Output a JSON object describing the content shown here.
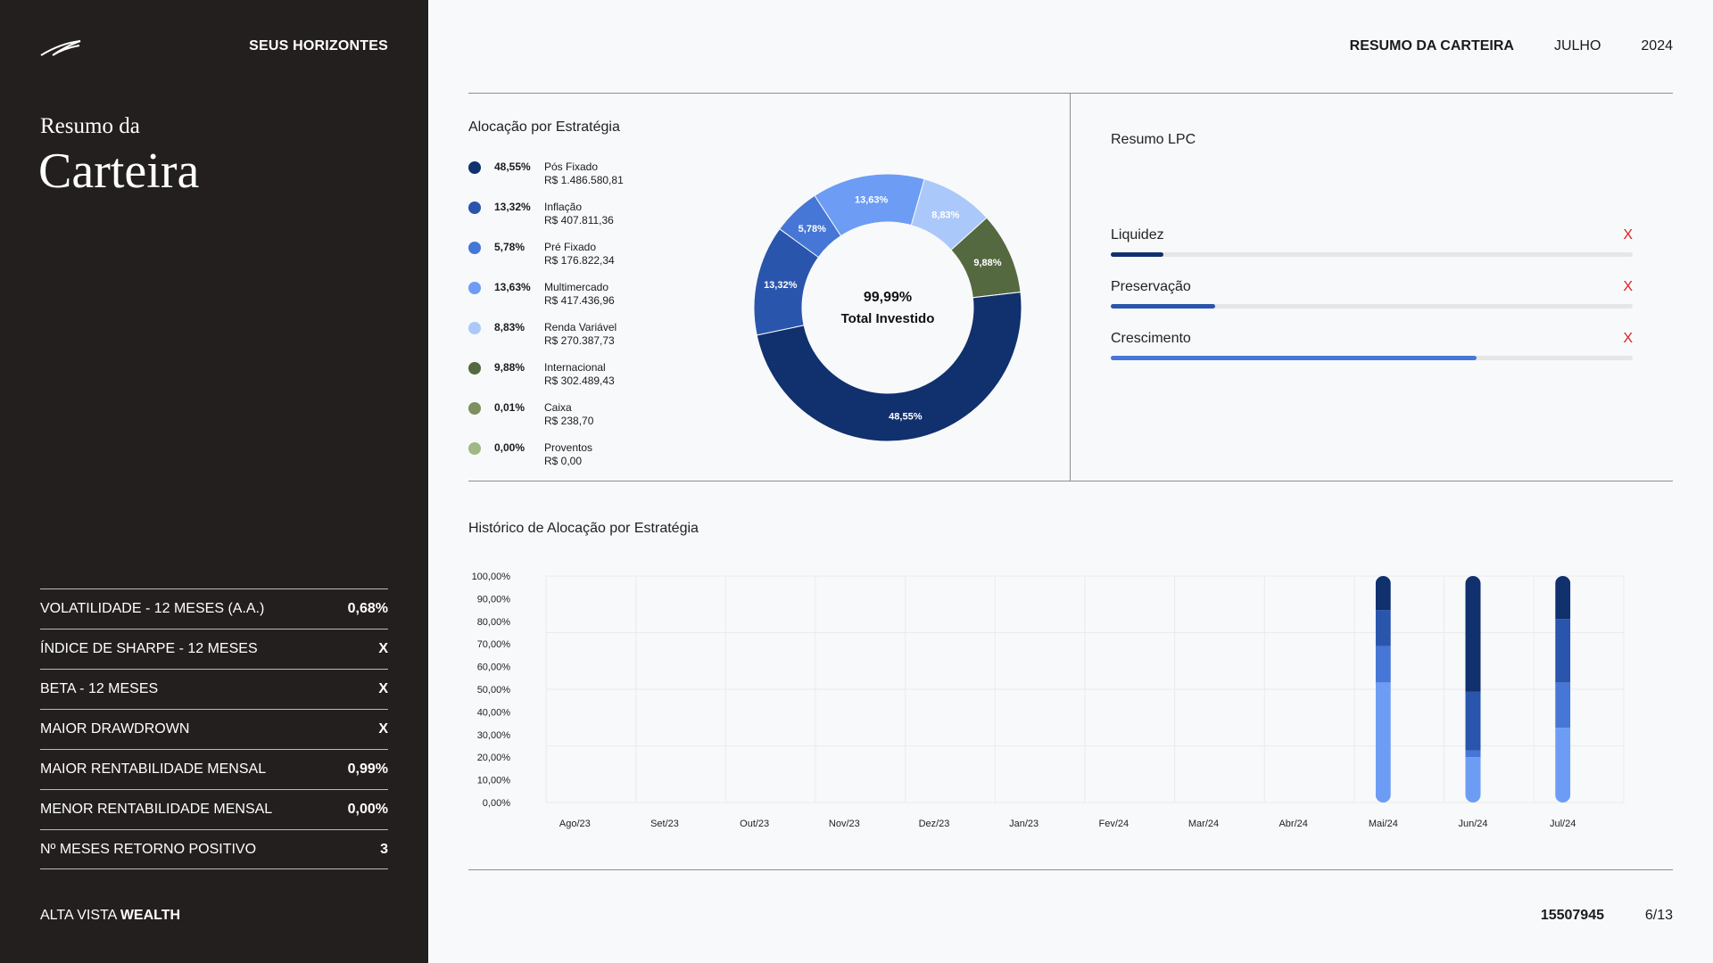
{
  "sidebar": {
    "brand_top": "SEUS HORIZONTES",
    "title_small": "Resumo da",
    "title_big": "Carteira",
    "metrics": [
      {
        "label": "VOLATILIDADE - 12 MESES (A.A.)",
        "value": "0,68%"
      },
      {
        "label": "ÍNDICE DE SHARPE - 12 MESES",
        "value": "X"
      },
      {
        "label": "BETA - 12 MESES",
        "value": "X"
      },
      {
        "label": "MAIOR DRAWDROWN",
        "value": "X"
      },
      {
        "label": "MAIOR RENTABILIDADE MENSAL",
        "value": "0,99%"
      },
      {
        "label": "MENOR RENTABILIDADE MENSAL",
        "value": "0,00%"
      },
      {
        "label": "Nº MESES RETORNO POSITIVO",
        "value": "3"
      }
    ],
    "footer_brand_light": "ALTA VISTA",
    "footer_brand_bold": "WEALTH"
  },
  "header": {
    "title": "RESUMO DA CARTEIRA",
    "month": "JULHO",
    "year": "2024"
  },
  "allocation": {
    "title": "Alocação por Estratégia",
    "items": [
      {
        "pct": "48,55%",
        "name": "Pós Fixado",
        "value": "R$ 1.486.580,81",
        "color": "#10306e"
      },
      {
        "pct": "13,32%",
        "name": "Inflação",
        "value": "R$ 407.811,36",
        "color": "#2a55ad"
      },
      {
        "pct": "5,78%",
        "name": "Pré Fixado",
        "value": "R$ 176.822,34",
        "color": "#4676d6"
      },
      {
        "pct": "13,63%",
        "name": "Multimercado",
        "value": "R$ 417.436,96",
        "color": "#6d9cf4"
      },
      {
        "pct": "8,83%",
        "name": "Renda Variável",
        "value": "R$ 270.387,73",
        "color": "#abc8fa"
      },
      {
        "pct": "9,88%",
        "name": "Internacional",
        "value": "R$ 302.489,43",
        "color": "#556940"
      },
      {
        "pct": "0,01%",
        "name": "Caixa",
        "value": "R$ 238,70",
        "color": "#7d9060"
      },
      {
        "pct": "0,00%",
        "name": "Proventos",
        "value": "R$ 0,00",
        "color": "#9fb884"
      }
    ],
    "center_pct": "99,99%",
    "center_label": "Total Investido"
  },
  "lpc": {
    "title": "Resumo LPC",
    "rows": [
      {
        "label": "Liquidez",
        "mark": "X",
        "fraction": 0.1,
        "color": "#10306e"
      },
      {
        "label": "Preservação",
        "mark": "X",
        "fraction": 0.2,
        "color": "#2a55ad"
      },
      {
        "label": "Crescimento",
        "mark": "X",
        "fraction": 0.7,
        "color": "#4676d6"
      }
    ]
  },
  "history_title": "Histórico de Alocação por Estratégia",
  "chart_data": {
    "type": "bar",
    "stacked": true,
    "categories": [
      "Ago/23",
      "Set/23",
      "Out/23",
      "Nov/23",
      "Dez/23",
      "Jan/23",
      "Fev/24",
      "Mar/24",
      "Abr/24",
      "Mai/24",
      "Jun/24",
      "Jul/24"
    ],
    "ytick_labels": [
      "0,00%",
      "10,00%",
      "20,00%",
      "30,00%",
      "40,00%",
      "50,00%",
      "60,00%",
      "70,00%",
      "80,00%",
      "90,00%",
      "100,00%"
    ],
    "ylim": [
      0,
      100
    ],
    "series": [
      {
        "values": [
          0,
          0,
          0,
          0,
          0,
          0,
          0,
          0,
          0,
          53,
          20,
          33
        ],
        "color": "#6d9cf4"
      },
      {
        "values": [
          0,
          0,
          0,
          0,
          0,
          0,
          0,
          0,
          0,
          0,
          3,
          0
        ],
        "color": "#4676d6"
      },
      {
        "values": [
          0,
          0,
          0,
          0,
          0,
          0,
          0,
          0,
          0,
          16,
          0,
          20
        ],
        "color": "#4676d6"
      },
      {
        "values": [
          0,
          0,
          0,
          0,
          0,
          0,
          0,
          0,
          0,
          16,
          26,
          28
        ],
        "color": "#2a55ad"
      },
      {
        "values": [
          0,
          0,
          0,
          0,
          0,
          0,
          0,
          0,
          0,
          15,
          51,
          19
        ],
        "color": "#10306e"
      }
    ]
  },
  "footer": {
    "id": "15507945",
    "page": "6/13"
  }
}
